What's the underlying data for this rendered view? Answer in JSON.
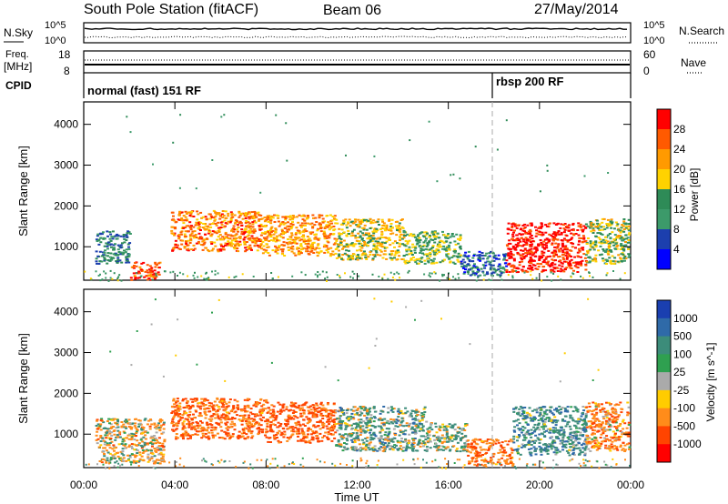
{
  "header": {
    "station": "South Pole Station (fitACF)",
    "beam": "Beam 06",
    "date": "27/May/2014"
  },
  "panels": {
    "nsky": {
      "label": "N.Sky",
      "left_ticks": [
        "10^5",
        "10^0"
      ],
      "right_ticks": [
        "10^5",
        "10^0"
      ],
      "right_label": "N.Search"
    },
    "freq": {
      "label_line1": "Freq.",
      "label_line2": "[MHz]",
      "left_ticks": [
        "18",
        "8"
      ],
      "right_ticks": [
        "60",
        "0"
      ],
      "right_label": "Nave"
    },
    "cpid": {
      "label": "CPID",
      "modes": [
        "normal (fast) 151 RF",
        "rbsp 200 RF"
      ]
    }
  },
  "colorbars": {
    "power": {
      "label": "Power [dB]",
      "ticks": [
        "28",
        "24",
        "20",
        "16",
        "12",
        "8",
        "4"
      ],
      "colors": [
        "#ff0000",
        "#ff5a00",
        "#ff9a00",
        "#ffd200",
        "#2e8b57",
        "#3c9a6a",
        "#1c3fae",
        "#0000ff"
      ]
    },
    "velocity": {
      "label": "Velocity [m s^-1]",
      "ticks": [
        "1000",
        "500",
        "100",
        "25",
        "-25",
        "-100",
        "-500",
        "-1000"
      ],
      "colors": [
        "#1a3fb0",
        "#2f6aa8",
        "#3c8c7a",
        "#2fa050",
        "#aaaaaa",
        "#ffcc00",
        "#ff8c1a",
        "#ff4400",
        "#ff0000"
      ]
    }
  },
  "colors": {
    "cpid_marker": "#aaaaaa"
  },
  "chart_data": [
    {
      "type": "heatmap",
      "title": "Power",
      "ylabel": "Slant Range [km]",
      "xlabel": "Time UT",
      "x_ticks": [
        "00:00",
        "04:00",
        "08:00",
        "12:00",
        "16:00",
        "20:00",
        "00:00"
      ],
      "y_ticks": [
        1000,
        2000,
        3000,
        4000
      ],
      "xlim_hours": [
        0,
        24
      ],
      "ylim_km": [
        180,
        4550
      ],
      "colorbar": "Power [dB]",
      "regions": [
        {
          "t0": 0.5,
          "t1": 2.0,
          "r0": 600,
          "r1": 1400,
          "value": 8
        },
        {
          "t0": 2.0,
          "t1": 3.3,
          "r0": 200,
          "r1": 650,
          "value": 26
        },
        {
          "t0": 3.8,
          "t1": 7.8,
          "r0": 900,
          "r1": 1900,
          "value": 22
        },
        {
          "t0": 7.8,
          "t1": 11.0,
          "r0": 800,
          "r1": 1800,
          "value": 20
        },
        {
          "t0": 11.0,
          "t1": 14.0,
          "r0": 700,
          "r1": 1700,
          "value": 16
        },
        {
          "t0": 14.0,
          "t1": 16.5,
          "r0": 600,
          "r1": 1400,
          "value": 12
        },
        {
          "t0": 16.5,
          "t1": 18.5,
          "r0": 300,
          "r1": 900,
          "value": 6
        },
        {
          "t0": 18.5,
          "t1": 22.0,
          "r0": 400,
          "r1": 1600,
          "value": 28
        },
        {
          "t0": 22.0,
          "t1": 23.9,
          "r0": 600,
          "r1": 1700,
          "value": 14
        }
      ]
    },
    {
      "type": "heatmap",
      "title": "Velocity",
      "ylabel": "Slant Range [km]",
      "xlabel": "Time UT",
      "x_ticks": [
        "00:00",
        "04:00",
        "08:00",
        "12:00",
        "16:00",
        "20:00",
        "00:00"
      ],
      "y_ticks": [
        1000,
        2000,
        3000,
        4000
      ],
      "xlim_hours": [
        0,
        24
      ],
      "ylim_km": [
        180,
        4550
      ],
      "colorbar": "Velocity [m s^-1]",
      "regions": [
        {
          "t0": 0.5,
          "t1": 3.5,
          "r0": 300,
          "r1": 1400,
          "value": -100
        },
        {
          "t0": 3.8,
          "t1": 8.0,
          "r0": 900,
          "r1": 1900,
          "value": -300
        },
        {
          "t0": 8.0,
          "t1": 11.0,
          "r0": 800,
          "r1": 1800,
          "value": -400
        },
        {
          "t0": 11.0,
          "t1": 15.0,
          "r0": 600,
          "r1": 1700,
          "value": 100
        },
        {
          "t0": 15.0,
          "t1": 16.8,
          "r0": 600,
          "r1": 1300,
          "value": 50
        },
        {
          "t0": 16.8,
          "t1": 18.8,
          "r0": 250,
          "r1": 900,
          "value": -300
        },
        {
          "t0": 18.8,
          "t1": 22.0,
          "r0": 500,
          "r1": 1700,
          "value": 200
        },
        {
          "t0": 22.0,
          "t1": 23.9,
          "r0": 600,
          "r1": 1800,
          "value": -200
        }
      ]
    }
  ]
}
